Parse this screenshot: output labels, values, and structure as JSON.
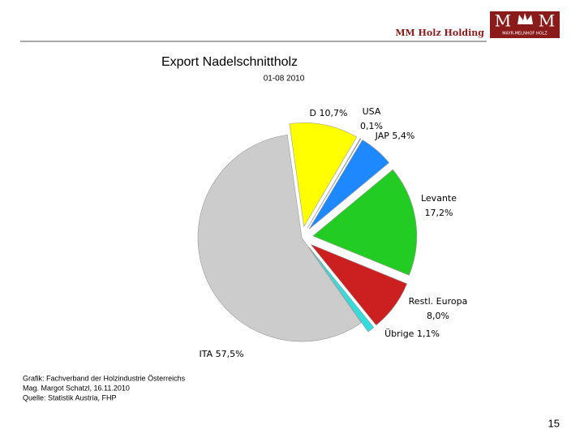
{
  "header": {
    "company": "MM Holz Holding",
    "logo_left": "M",
    "logo_right": "M",
    "logo_text": "MAYR-MELNHOF HOLZ"
  },
  "chart_data": {
    "type": "pie",
    "title": "Export Nadelschnittholz",
    "subtitle": "01-08 2010",
    "categories": [
      "D",
      "USA",
      "JAP",
      "Levante",
      "Restl. Europa",
      "Übrige",
      "ITA"
    ],
    "values": [
      10.7,
      0.1,
      5.4,
      17.2,
      8.0,
      1.1,
      57.5
    ],
    "value_labels": [
      "10,7%",
      "0,1%",
      "5,4%",
      "17,2%",
      "8,0%",
      "1,1%",
      "57,5%"
    ],
    "colors": [
      "#ffff00",
      "#3355ff",
      "#1e88ff",
      "#22cc22",
      "#cc2020",
      "#33dddd",
      "#cccccc"
    ]
  },
  "footer": {
    "source_lines": [
      "Grafik: Fachverband der Holzindustrie Österreichs",
      "Mag. Margot Schatzl, 16.11.2010",
      "Quelle: Statistik Austria, FHP"
    ],
    "page_number": "15"
  }
}
